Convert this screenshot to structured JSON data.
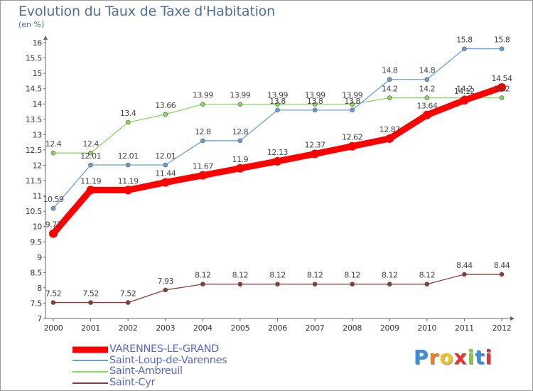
{
  "chart_data": {
    "type": "line",
    "title": "Evolution du Taux de Taxe d'Habitation",
    "subtitle": "(en %)",
    "xlabel": "",
    "ylabel": "",
    "x": [
      "2000",
      "2001",
      "2002",
      "2003",
      "2004",
      "2005",
      "2006",
      "2007",
      "2008",
      "2009",
      "2010",
      "2011",
      "2012"
    ],
    "ylim": [
      7,
      16
    ],
    "yticks": [
      "7",
      "7.5",
      "8",
      "8.5",
      "9",
      "9.5",
      "10",
      "10.5",
      "11",
      "11.5",
      "12",
      "12.5",
      "13",
      "13.5",
      "14",
      "14.5",
      "15",
      "15.5",
      "16"
    ],
    "grid": false,
    "legend_position": "bottom-left",
    "series": [
      {
        "name": "VARENNES-LE-GRAND",
        "color": "#ff0000",
        "values": [
          9.77,
          11.19,
          11.19,
          11.44,
          11.67,
          11.9,
          12.13,
          12.37,
          12.62,
          12.87,
          13.64,
          14.12,
          14.54
        ],
        "labels": [
          "9.77",
          "11.19",
          "11.19",
          "11.44",
          "11.67",
          "11.9",
          "12.13",
          "12.37",
          "12.62",
          "12.87",
          "13.64",
          "14.12",
          "14.54"
        ]
      },
      {
        "name": "Saint-Loup-de-Varennes",
        "color": "#6b9fd4",
        "values": [
          10.59,
          12.01,
          12.01,
          12.01,
          12.8,
          12.8,
          13.8,
          13.8,
          13.8,
          14.8,
          14.8,
          15.8,
          15.8
        ],
        "labels": [
          "10.59",
          "12.01",
          "12.01",
          "12.01",
          "12.8",
          "12.8",
          "13.8",
          "13.8",
          "13.8",
          "14.8",
          "14.8",
          "15.8",
          "15.8"
        ]
      },
      {
        "name": "Saint-Ambreuil",
        "color": "#88d860",
        "values": [
          12.4,
          12.4,
          13.4,
          13.66,
          13.99,
          13.99,
          13.99,
          13.99,
          13.99,
          14.2,
          14.2,
          14.2,
          14.2
        ],
        "labels": [
          "12.4",
          "12.4",
          "13.4",
          "13.66",
          "13.99",
          "13.99",
          "13.99",
          "13.99",
          "13.99",
          "14.2",
          "14.2",
          "14.2",
          "14.2"
        ]
      },
      {
        "name": "Saint-Cyr",
        "color": "#8b3a3a",
        "values": [
          7.52,
          7.52,
          7.52,
          7.93,
          8.12,
          8.12,
          8.12,
          8.12,
          8.12,
          8.12,
          8.12,
          8.44,
          8.44
        ],
        "labels": [
          "7.52",
          "7.52",
          "7.52",
          "7.93",
          "8.12",
          "8.12",
          "8.12",
          "8.12",
          "8.12",
          "8.12",
          "8.12",
          "8.44",
          "8.44"
        ]
      }
    ]
  },
  "logo": {
    "letters": [
      "P",
      "r",
      "o",
      "x",
      "i",
      "t",
      "i"
    ],
    "colors": [
      "#3a8fd8",
      "#f07e1e",
      "#f0c21e",
      "#e53232",
      "#8cc63f",
      "#3a8fd8",
      "#e53232"
    ]
  }
}
